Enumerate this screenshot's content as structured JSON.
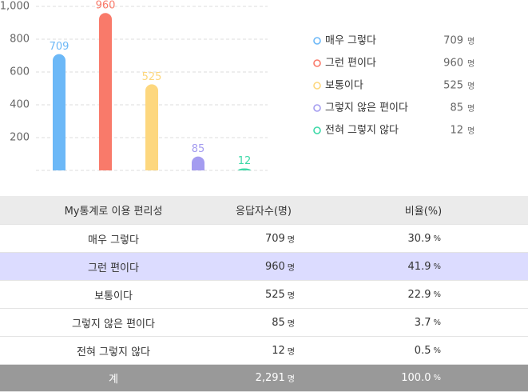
{
  "chart_data": {
    "type": "bar",
    "categories": [
      "매우 그렇다",
      "그런 편이다",
      "보통이다",
      "그렇지 않은 편이다",
      "전혀 그렇지 않다"
    ],
    "values": [
      709,
      960,
      525,
      85,
      12
    ],
    "colors": [
      "#6cb8f7",
      "#f97a6a",
      "#fdd77e",
      "#a49cf0",
      "#3dd9a8"
    ],
    "ylim": [
      0,
      1000
    ],
    "yticks": [
      200,
      400,
      600,
      800,
      {
        "value": 1000,
        "label": "1,000"
      }
    ],
    "grid": true,
    "unit": "명"
  },
  "table": {
    "headers": [
      "My통계로 이용 편리성",
      "응답자수(명)",
      "비율(%)"
    ],
    "count_unit": "명",
    "percent_unit": "%",
    "rows": [
      {
        "label": "매우 그렇다",
        "count": "709",
        "percent": "30.9"
      },
      {
        "label": "그런 편이다",
        "count": "960",
        "percent": "41.9"
      },
      {
        "label": "보통이다",
        "count": "525",
        "percent": "22.9"
      },
      {
        "label": "그렇지 않은 편이다",
        "count": "85",
        "percent": "3.7"
      },
      {
        "label": "전혀 그렇지 않다",
        "count": "12",
        "percent": "0.5"
      }
    ],
    "total": {
      "label": "계",
      "count": "2,291",
      "percent": "100.0"
    }
  }
}
